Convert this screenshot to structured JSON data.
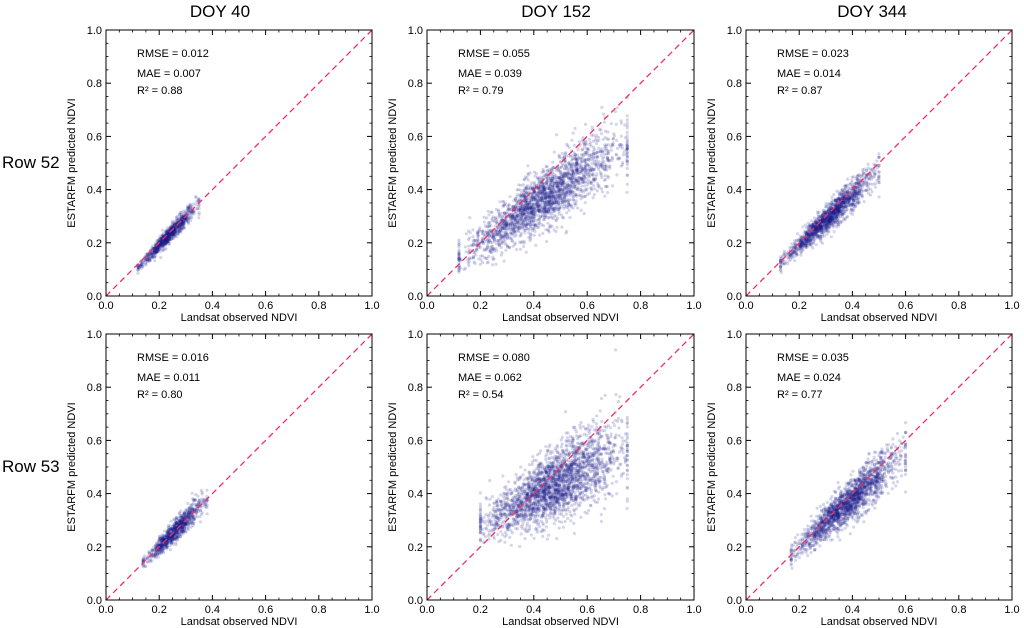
{
  "column_titles": [
    "DOY 40",
    "DOY 152",
    "DOY 344"
  ],
  "row_titles": [
    "Row 52",
    "Row 53"
  ],
  "chart_data": [
    {
      "type": "scatter",
      "row": "Row 52",
      "column": "DOY 40",
      "xlabel": "Landsat observed NDVI",
      "ylabel": "ESTARFM predicted NDVI",
      "xlim": [
        0,
        1
      ],
      "ylim": [
        0,
        1
      ],
      "xticks": [
        "0.0",
        "0.2",
        "0.4",
        "0.6",
        "0.8",
        "1.0"
      ],
      "yticks": [
        "0.0",
        "0.2",
        "0.4",
        "0.6",
        "0.8",
        "1.0"
      ],
      "stats": {
        "rmse": "RMSE = 0.012",
        "mae": "MAE = 0.007",
        "r2": "R² = 0.88"
      },
      "reference_line": "1:1",
      "cloud": {
        "x_range": [
          0.12,
          0.35
        ],
        "slope": 1.05,
        "intercept": -0.02,
        "spread": 0.012,
        "count": 900
      }
    },
    {
      "type": "scatter",
      "row": "Row 52",
      "column": "DOY 152",
      "xlabel": "Landsat observed NDVI",
      "ylabel": "ESTARFM predicted NDVI",
      "xlim": [
        0,
        1
      ],
      "ylim": [
        0,
        1
      ],
      "xticks": [
        "0.0",
        "0.2",
        "0.4",
        "0.6",
        "0.8",
        "1.0"
      ],
      "yticks": [
        "0.0",
        "0.2",
        "0.4",
        "0.6",
        "0.8",
        "1.0"
      ],
      "stats": {
        "rmse": "RMSE = 0.055",
        "mae": "MAE = 0.039",
        "r2": "R² = 0.79"
      },
      "reference_line": "1:1",
      "cloud": {
        "x_range": [
          0.12,
          0.75
        ],
        "slope": 0.7,
        "intercept": 0.06,
        "spread": 0.045,
        "count": 2200
      }
    },
    {
      "type": "scatter",
      "row": "Row 52",
      "column": "DOY 344",
      "xlabel": "Landsat observed NDVI",
      "ylabel": "ESTARFM predicted NDVI",
      "xlim": [
        0,
        1
      ],
      "ylim": [
        0,
        1
      ],
      "xticks": [
        "0.0",
        "0.2",
        "0.4",
        "0.6",
        "0.8",
        "1.0"
      ],
      "yticks": [
        "0.0",
        "0.2",
        "0.4",
        "0.6",
        "0.8",
        "1.0"
      ],
      "stats": {
        "rmse": "RMSE = 0.023",
        "mae": "MAE = 0.014",
        "r2": "R² = 0.87"
      },
      "reference_line": "1:1",
      "cloud": {
        "x_range": [
          0.13,
          0.5
        ],
        "slope": 0.95,
        "intercept": 0.0,
        "spread": 0.02,
        "count": 1500
      }
    },
    {
      "type": "scatter",
      "row": "Row 53",
      "column": "DOY 40",
      "xlabel": "Landsat observed NDVI",
      "ylabel": "ESTARFM predicted NDVI",
      "xlim": [
        0,
        1
      ],
      "ylim": [
        0,
        1
      ],
      "xticks": [
        "0.0",
        "0.2",
        "0.4",
        "0.6",
        "0.8",
        "1.0"
      ],
      "yticks": [
        "0.0",
        "0.2",
        "0.4",
        "0.6",
        "0.8",
        "1.0"
      ],
      "stats": {
        "rmse": "RMSE = 0.016",
        "mae": "MAE = 0.011",
        "r2": "R² = 0.80"
      },
      "reference_line": "1:1",
      "cloud": {
        "x_range": [
          0.14,
          0.38
        ],
        "slope": 1.0,
        "intercept": 0.0,
        "spread": 0.016,
        "count": 900
      }
    },
    {
      "type": "scatter",
      "row": "Row 53",
      "column": "DOY 152",
      "xlabel": "Landsat observed NDVI",
      "ylabel": "ESTARFM predicted NDVI",
      "xlim": [
        0,
        1
      ],
      "ylim": [
        0,
        1
      ],
      "xticks": [
        "0.0",
        "0.2",
        "0.4",
        "0.6",
        "0.8",
        "1.0"
      ],
      "yticks": [
        "0.0",
        "0.2",
        "0.4",
        "0.6",
        "0.8",
        "1.0"
      ],
      "stats": {
        "rmse": "RMSE = 0.080",
        "mae": "MAE = 0.062",
        "r2": "R² = 0.54"
      },
      "reference_line": "1:1",
      "cloud": {
        "x_range": [
          0.2,
          0.75
        ],
        "slope": 0.55,
        "intercept": 0.17,
        "spread": 0.055,
        "count": 2400
      }
    },
    {
      "type": "scatter",
      "row": "Row 53",
      "column": "DOY 344",
      "xlabel": "Landsat observed NDVI",
      "ylabel": "ESTARFM predicted NDVI",
      "xlim": [
        0,
        1
      ],
      "ylim": [
        0,
        1
      ],
      "xticks": [
        "0.0",
        "0.2",
        "0.4",
        "0.6",
        "0.8",
        "1.0"
      ],
      "yticks": [
        "0.0",
        "0.2",
        "0.4",
        "0.6",
        "0.8",
        "1.0"
      ],
      "stats": {
        "rmse": "RMSE = 0.035",
        "mae": "MAE = 0.024",
        "r2": "R² = 0.77"
      },
      "reference_line": "1:1",
      "cloud": {
        "x_range": [
          0.17,
          0.6
        ],
        "slope": 0.9,
        "intercept": 0.02,
        "spread": 0.03,
        "count": 1800
      }
    }
  ],
  "colors": {
    "points": "#1a1a8c",
    "reference_line": "#e8336a",
    "axis": "#000000"
  }
}
